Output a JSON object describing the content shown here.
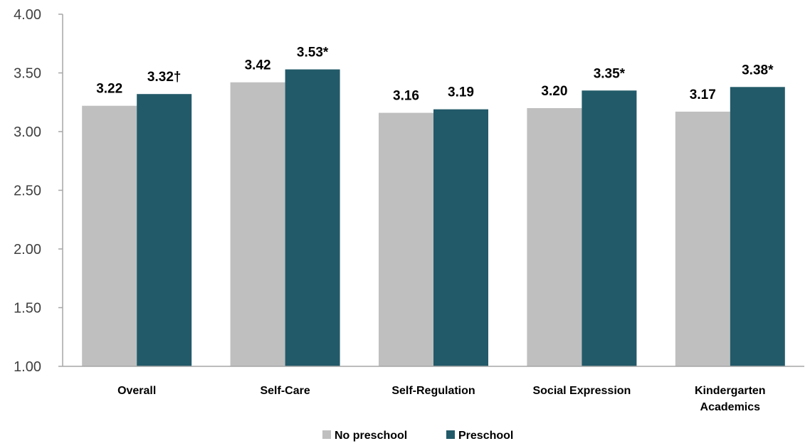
{
  "chart_data": {
    "type": "bar",
    "categories": [
      [
        "Overall"
      ],
      [
        "Self-Care"
      ],
      [
        "Self-Regulation"
      ],
      [
        "Social Expression"
      ],
      [
        "Kindergarten",
        "Academics"
      ]
    ],
    "series": [
      {
        "name": "No preschool",
        "color": "#bfbfbf",
        "values": [
          3.22,
          3.42,
          3.16,
          3.2,
          3.17
        ],
        "labels": [
          "3.22",
          "3.42",
          "3.16",
          "3.20",
          "3.17"
        ]
      },
      {
        "name": "Preschool",
        "color": "#225a69",
        "values": [
          3.32,
          3.53,
          3.19,
          3.35,
          3.38
        ],
        "labels": [
          "3.32†",
          "3.53*",
          "3.19",
          "3.35*",
          "3.38*"
        ]
      }
    ],
    "ylim": [
      1.0,
      4.0
    ],
    "yticks": [
      "1.00",
      "1.50",
      "2.00",
      "2.50",
      "3.00",
      "3.50",
      "4.00"
    ],
    "ytick_values": [
      1.0,
      1.5,
      2.0,
      2.5,
      3.0,
      3.5,
      4.0
    ],
    "title": "",
    "xlabel": "",
    "ylabel": "",
    "grid": false,
    "legend_position": "bottom"
  }
}
